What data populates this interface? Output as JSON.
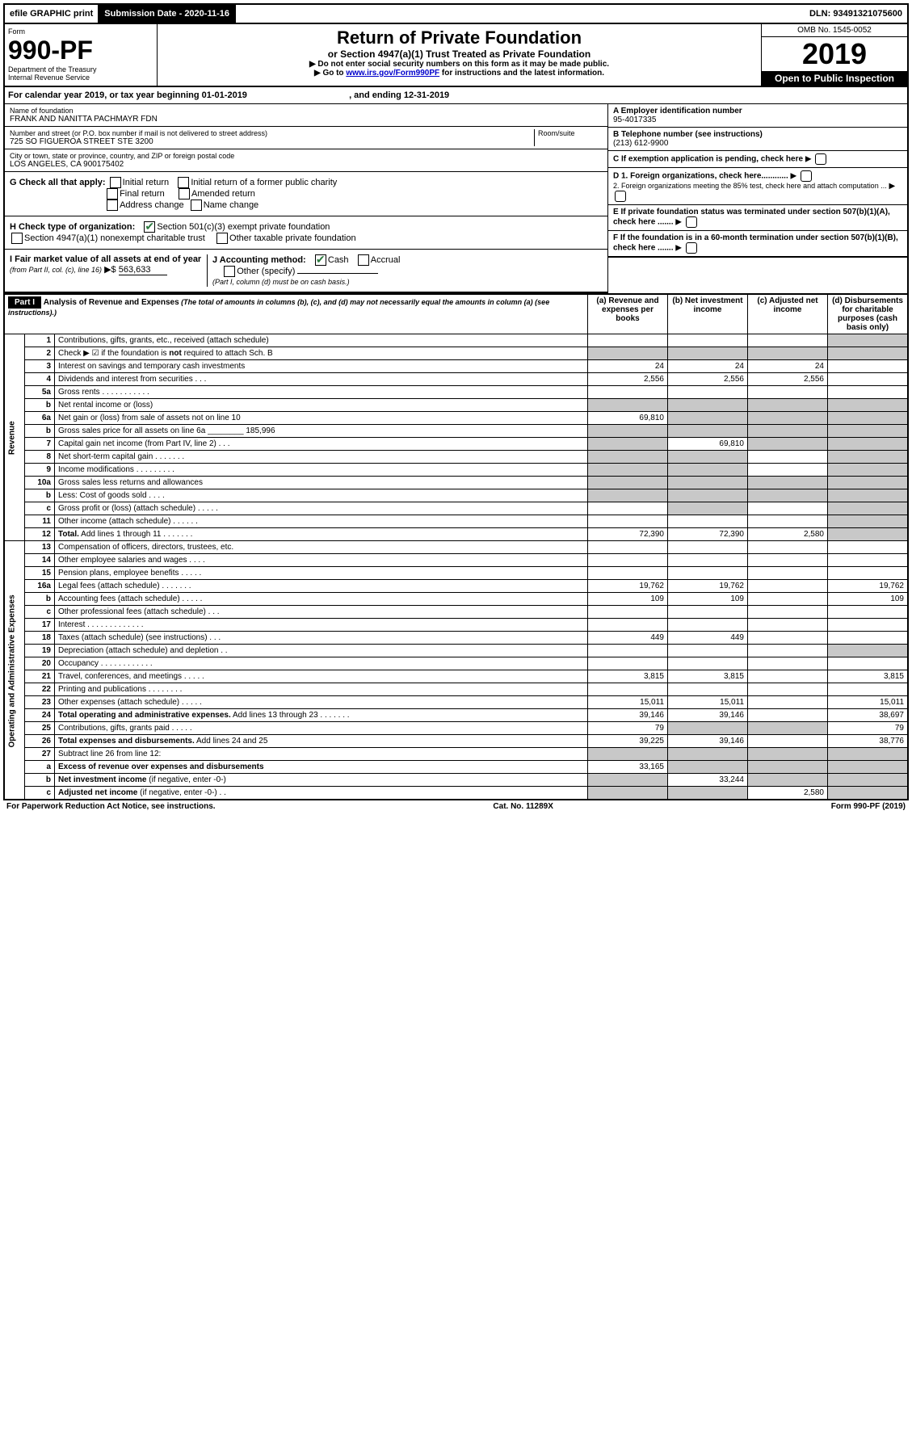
{
  "topbar": {
    "efile": "efile GRAPHIC print",
    "submission_label": "Submission Date - 2020-11-16",
    "dln": "DLN: 93491321075600"
  },
  "header": {
    "form_word": "Form",
    "form_no": "990-PF",
    "dept": "Department of the Treasury",
    "irs": "Internal Revenue Service",
    "title": "Return of Private Foundation",
    "subtitle": "or Section 4947(a)(1) Trust Treated as Private Foundation",
    "note1": "▶ Do not enter social security numbers on this form as it may be made public.",
    "note2_a": "▶ Go to ",
    "note2_link": "www.irs.gov/Form990PF",
    "note2_b": " for instructions and the latest information.",
    "omb": "OMB No. 1545-0052",
    "year": "2019",
    "open": "Open to Public Inspection"
  },
  "cal": {
    "text_a": "For calendar year 2019, or tax year beginning ",
    "begin": "01-01-2019",
    "text_b": " , and ending ",
    "end": "12-31-2019"
  },
  "info": {
    "name_label": "Name of foundation",
    "name": "FRANK AND NANITTA PACHMAYR FDN",
    "addr_label": "Number and street (or P.O. box number if mail is not delivered to street address)",
    "addr": "725 SO FIGUEROA STREET STE 3200",
    "room_label": "Room/suite",
    "city_label": "City or town, state or province, country, and ZIP or foreign postal code",
    "city": "LOS ANGELES, CA  900175402",
    "a_label": "A Employer identification number",
    "a_val": "95-4017335",
    "b_label": "B Telephone number (see instructions)",
    "b_val": "(213) 612-9900",
    "c_label": "C If exemption application is pending, check here",
    "d1": "D 1. Foreign organizations, check here............",
    "d2": "2. Foreign organizations meeting the 85% test, check here and attach computation ...",
    "e": "E  If private foundation status was terminated under section 507(b)(1)(A), check here .......",
    "f": "F  If the foundation is in a 60-month termination under section 507(b)(1)(B), check here .......",
    "g_label": "G Check all that apply:",
    "g_initial": "Initial return",
    "g_initial_former": "Initial return of a former public charity",
    "g_final": "Final return",
    "g_amended": "Amended return",
    "g_addr": "Address change",
    "g_name": "Name change",
    "h_label": "H Check type of organization:",
    "h_501c3": "Section 501(c)(3) exempt private foundation",
    "h_4947": "Section 4947(a)(1) nonexempt charitable trust",
    "h_other": "Other taxable private foundation",
    "i_label_a": "I Fair market value of all assets at end of year ",
    "i_label_b": "(from Part II, col. (c), line 16)",
    "i_arrow": "▶$",
    "i_val": "563,633",
    "j_label": "J Accounting method:",
    "j_cash": "Cash",
    "j_accrual": "Accrual",
    "j_other": "Other (specify)",
    "j_note": "(Part I, column (d) must be on cash basis.)"
  },
  "part1": {
    "label": "Part I",
    "title": "Analysis of Revenue and Expenses",
    "title_note": " (The total of amounts in columns (b), (c), and (d) may not necessarily equal the amounts in column (a) (see instructions).)",
    "col_a": "(a)   Revenue and expenses per books",
    "col_b": "(b)  Net investment income",
    "col_c": "(c)  Adjusted net income",
    "col_d": "(d)  Disbursements for charitable purposes (cash basis only)",
    "revenue_label": "Revenue",
    "expenses_label": "Operating and Administrative Expenses"
  },
  "rows": [
    {
      "n": "1",
      "desc": "Contributions, gifts, grants, etc., received (attach schedule)",
      "a": "",
      "b": "",
      "c": "",
      "d": "",
      "d_shade": true
    },
    {
      "n": "2",
      "desc": "Check ▶ ☑ if the foundation is <b>not</b> required to attach Sch. B",
      "a": "",
      "b": "",
      "c": "",
      "d": "",
      "abcd_shade": true
    },
    {
      "n": "3",
      "desc": "Interest on savings and temporary cash investments",
      "a": "24",
      "b": "24",
      "c": "24",
      "d": ""
    },
    {
      "n": "4",
      "desc": "Dividends and interest from securities   .   .   .",
      "a": "2,556",
      "b": "2,556",
      "c": "2,556",
      "d": ""
    },
    {
      "n": "5a",
      "desc": "Gross rents   .   .   .   .   .   .   .   .   .   .   .",
      "a": "",
      "b": "",
      "c": "",
      "d": ""
    },
    {
      "n": "b",
      "desc": "Net rental income or (loss)  ",
      "a": "",
      "b": "",
      "c": "",
      "d": "",
      "abcd_shade": true
    },
    {
      "n": "6a",
      "desc": "Net gain or (loss) from sale of assets not on line 10",
      "a": "69,810",
      "b": "",
      "c": "",
      "d": "",
      "b_shade": true,
      "c_shade": true,
      "d_shade": true
    },
    {
      "n": "b",
      "desc": "Gross sales price for all assets on line 6a ________ 185,996",
      "a": "",
      "b": "",
      "c": "",
      "d": "",
      "abcd_shade": true
    },
    {
      "n": "7",
      "desc": "Capital gain net income (from Part IV, line 2)   .   .   .",
      "a": "",
      "b": "69,810",
      "c": "",
      "d": "",
      "a_shade": true,
      "c_shade": true,
      "d_shade": true
    },
    {
      "n": "8",
      "desc": "Net short-term capital gain   .   .   .   .   .   .   .",
      "a": "",
      "b": "",
      "c": "",
      "d": "",
      "a_shade": true,
      "b_shade": true,
      "d_shade": true
    },
    {
      "n": "9",
      "desc": "Income modifications   .   .   .   .   .   .   .   .   .",
      "a": "",
      "b": "",
      "c": "",
      "d": "",
      "a_shade": true,
      "b_shade": true,
      "d_shade": true
    },
    {
      "n": "10a",
      "desc": "Gross sales less returns and allowances",
      "a": "",
      "b": "",
      "c": "",
      "d": "",
      "abcd_shade": true
    },
    {
      "n": "b",
      "desc": "Less: Cost of goods sold   .   .   .   .",
      "a": "",
      "b": "",
      "c": "",
      "d": "",
      "abcd_shade": true
    },
    {
      "n": "c",
      "desc": "Gross profit or (loss) (attach schedule)   .   .   .   .   .",
      "a": "",
      "b": "",
      "c": "",
      "d": "",
      "b_shade": true,
      "d_shade": true
    },
    {
      "n": "11",
      "desc": "Other income (attach schedule)   .   .   .   .   .   .",
      "a": "",
      "b": "",
      "c": "",
      "d": "",
      "d_shade": true
    },
    {
      "n": "12",
      "desc": "<b>Total.</b> Add lines 1 through 11   .   .   .   .   .   .   .",
      "a": "72,390",
      "b": "72,390",
      "c": "2,580",
      "d": "",
      "d_shade": true
    },
    {
      "n": "13",
      "desc": "Compensation of officers, directors, trustees, etc.",
      "a": "",
      "b": "",
      "c": "",
      "d": ""
    },
    {
      "n": "14",
      "desc": "Other employee salaries and wages   .   .   .   .",
      "a": "",
      "b": "",
      "c": "",
      "d": ""
    },
    {
      "n": "15",
      "desc": "Pension plans, employee benefits   .   .   .   .   .",
      "a": "",
      "b": "",
      "c": "",
      "d": ""
    },
    {
      "n": "16a",
      "desc": "Legal fees (attach schedule)   .   .   .   .   .   .   .",
      "a": "19,762",
      "b": "19,762",
      "c": "",
      "d": "19,762"
    },
    {
      "n": "b",
      "desc": "Accounting fees (attach schedule)   .   .   .   .   .",
      "a": "109",
      "b": "109",
      "c": "",
      "d": "109"
    },
    {
      "n": "c",
      "desc": "Other professional fees (attach schedule)   .   .   .",
      "a": "",
      "b": "",
      "c": "",
      "d": ""
    },
    {
      "n": "17",
      "desc": "Interest   .   .   .   .   .   .   .   .   .   .   .   .   .",
      "a": "",
      "b": "",
      "c": "",
      "d": ""
    },
    {
      "n": "18",
      "desc": "Taxes (attach schedule) (see instructions)   .   .   .",
      "a": "449",
      "b": "449",
      "c": "",
      "d": ""
    },
    {
      "n": "19",
      "desc": "Depreciation (attach schedule) and depletion   .   .",
      "a": "",
      "b": "",
      "c": "",
      "d": "",
      "d_shade": true
    },
    {
      "n": "20",
      "desc": "Occupancy   .   .   .   .   .   .   .   .   .   .   .   .",
      "a": "",
      "b": "",
      "c": "",
      "d": ""
    },
    {
      "n": "21",
      "desc": "Travel, conferences, and meetings   .   .   .   .   .",
      "a": "3,815",
      "b": "3,815",
      "c": "",
      "d": "3,815"
    },
    {
      "n": "22",
      "desc": "Printing and publications   .   .   .   .   .   .   .   .",
      "a": "",
      "b": "",
      "c": "",
      "d": ""
    },
    {
      "n": "23",
      "desc": "Other expenses (attach schedule)   .   .   .   .   .",
      "a": "15,011",
      "b": "15,011",
      "c": "",
      "d": "15,011"
    },
    {
      "n": "24",
      "desc": "<b>Total operating and administrative expenses.</b> Add lines 13 through 23   .   .   .   .   .   .   .",
      "a": "39,146",
      "b": "39,146",
      "c": "",
      "d": "38,697"
    },
    {
      "n": "25",
      "desc": "Contributions, gifts, grants paid   .   .   .   .   .",
      "a": "79",
      "b": "",
      "c": "",
      "d": "79",
      "b_shade": true,
      "c_shade": true
    },
    {
      "n": "26",
      "desc": "<b>Total expenses and disbursements.</b> Add lines 24 and 25",
      "a": "39,225",
      "b": "39,146",
      "c": "",
      "d": "38,776"
    },
    {
      "n": "27",
      "desc": "Subtract line 26 from line 12:",
      "a": "",
      "b": "",
      "c": "",
      "d": "",
      "abcd_shade": true
    },
    {
      "n": "a",
      "desc": "<b>Excess of revenue over expenses and disbursements</b>",
      "a": "33,165",
      "b": "",
      "c": "",
      "d": "",
      "b_shade": true,
      "c_shade": true,
      "d_shade": true
    },
    {
      "n": "b",
      "desc": "<b>Net investment income</b> (if negative, enter -0-)",
      "a": "",
      "b": "33,244",
      "c": "",
      "d": "",
      "a_shade": true,
      "c_shade": true,
      "d_shade": true
    },
    {
      "n": "c",
      "desc": "<b>Adjusted net income</b> (if negative, enter -0-)   .   .",
      "a": "",
      "b": "",
      "c": "2,580",
      "d": "",
      "a_shade": true,
      "b_shade": true,
      "d_shade": true
    }
  ],
  "footer": {
    "left": "For Paperwork Reduction Act Notice, see instructions.",
    "mid": "Cat. No. 11289X",
    "right": "Form 990-PF (2019)"
  }
}
